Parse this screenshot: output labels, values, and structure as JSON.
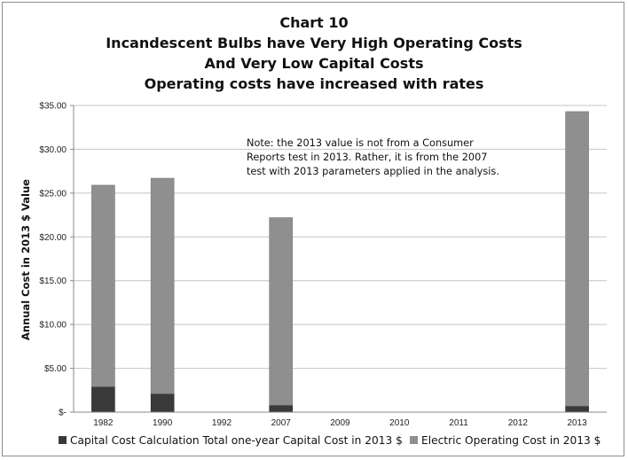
{
  "chart_data": {
    "type": "bar",
    "stacked": true,
    "title": [
      "Chart 10",
      "Incandescent Bulbs have Very High Operating Costs",
      "And Very Low Capital Costs",
      "Operating costs have increased with rates"
    ],
    "ylabel": "Annual Cost in 2013 $ Value",
    "xlabel": "",
    "categories": [
      "1982",
      "1990",
      "1992",
      "2007",
      "2009",
      "2010",
      "2011",
      "2012",
      "2013"
    ],
    "ylim": [
      0,
      35
    ],
    "yticks": [
      {
        "value": 0,
        "label": "$-"
      },
      {
        "value": 5,
        "label": "$5.00"
      },
      {
        "value": 10,
        "label": "$10.00"
      },
      {
        "value": 15,
        "label": "$15.00"
      },
      {
        "value": 20,
        "label": "$20.00"
      },
      {
        "value": 25,
        "label": "$25.00"
      },
      {
        "value": 30,
        "label": "$30.00"
      },
      {
        "value": 35,
        "label": "$35.00"
      }
    ],
    "grid": true,
    "series": [
      {
        "name": "Capital Cost Calculation Total one-year Capital Cost in 2013 $",
        "color": "#3a3a3a",
        "values": [
          2.9,
          2.1,
          null,
          0.8,
          null,
          null,
          null,
          null,
          0.7
        ]
      },
      {
        "name": "Electric Operating Cost in 2013 $",
        "color": "#8f8f8f",
        "values": [
          23.0,
          24.6,
          null,
          21.4,
          null,
          null,
          null,
          null,
          33.6
        ]
      }
    ],
    "annotation": [
      "Note:  the 2013 value is not from a Consumer",
      "Reports test in 2013.  Rather, it is from the 2007",
      "test with 2013 parameters applied in the analysis."
    ],
    "legend_position": "bottom"
  }
}
